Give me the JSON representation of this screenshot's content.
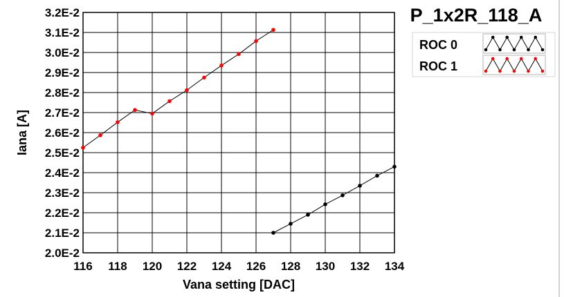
{
  "chart_data": {
    "type": "line",
    "title": "P_1x2R_118_A",
    "xlabel": "Vana setting [DAC]",
    "ylabel": "Iana [A]",
    "xlim": [
      116,
      134
    ],
    "ylim": [
      0.02,
      0.032
    ],
    "x_ticks": [
      116,
      118,
      120,
      122,
      124,
      126,
      128,
      130,
      132,
      134
    ],
    "x_tick_labels": [
      "116",
      "118",
      "120",
      "122",
      "124",
      "126",
      "128",
      "130",
      "132",
      "134"
    ],
    "y_ticks": [
      0.02,
      0.021,
      0.022,
      0.023,
      0.024,
      0.025,
      0.026,
      0.027,
      0.028,
      0.029,
      0.03,
      0.031,
      0.032
    ],
    "y_tick_labels": [
      "2.0E-2",
      "2.1E-2",
      "2.2E-2",
      "2.3E-2",
      "2.4E-2",
      "2.5E-2",
      "2.6E-2",
      "2.7E-2",
      "2.8E-2",
      "2.9E-2",
      "3.0E-2",
      "3.1E-2",
      "3.2E-2"
    ],
    "grid": true,
    "legend_position": "top-right",
    "series": [
      {
        "name": "ROC 0",
        "color": "#000000",
        "marker_color": "#000000",
        "x": [
          127,
          128,
          129,
          130,
          131,
          132,
          133,
          134
        ],
        "y": [
          0.021,
          0.02145,
          0.0219,
          0.02242,
          0.02287,
          0.02335,
          0.02385,
          0.0243
        ]
      },
      {
        "name": "ROC 1",
        "color": "#000000",
        "marker_color": "#ff0000",
        "x": [
          116,
          117,
          118,
          119,
          120,
          121,
          122,
          123,
          124,
          125,
          126,
          127
        ],
        "y": [
          0.02525,
          0.02587,
          0.02652,
          0.02713,
          0.02695,
          0.02757,
          0.02812,
          0.02875,
          0.02935,
          0.02992,
          0.03057,
          0.03113
        ]
      }
    ]
  }
}
